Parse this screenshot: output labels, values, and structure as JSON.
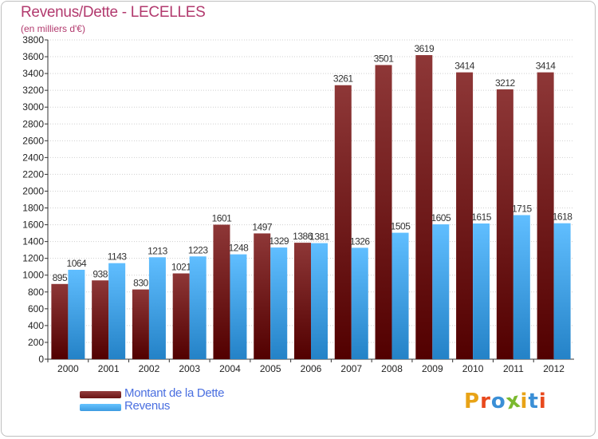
{
  "header": {
    "title": "Revenus/Dette - LECELLES",
    "subtitle": "(en milliers d'€)"
  },
  "legend": {
    "items": [
      {
        "label": "Montant de la Dette",
        "color": "#6b1414"
      },
      {
        "label": "Revenus",
        "color": "#3d9be0"
      }
    ]
  },
  "brand": {
    "letters": [
      "P",
      "r",
      "o",
      "x",
      "i",
      "t",
      "i"
    ],
    "colors": [
      "#e8a317",
      "#e8491d",
      "#3a8fd6",
      "#7ab92e",
      "#e8a317",
      "#3a8fd6",
      "#e8491d"
    ]
  },
  "chart_data": {
    "type": "bar",
    "title": "Revenus/Dette - LECELLES",
    "subtitle": "(en milliers d'€)",
    "categories": [
      "2000",
      "2001",
      "2002",
      "2003",
      "2004",
      "2005",
      "2006",
      "2007",
      "2008",
      "2009",
      "2010",
      "2011",
      "2012"
    ],
    "series": [
      {
        "name": "Montant de la Dette",
        "color": "#6b1414",
        "values": [
          895,
          938,
          830,
          1021,
          1601,
          1497,
          1386,
          3261,
          3501,
          3619,
          3414,
          3212,
          3414
        ],
        "labels": [
          "895",
          "938",
          "830",
          "1021",
          "1601",
          "1497",
          "1386",
          "3261",
          "3501",
          "3619",
          "3414",
          "3212",
          "3414"
        ]
      },
      {
        "name": "Revenus",
        "color": "#3d9be0",
        "values": [
          1064,
          1143,
          1213,
          1223,
          1248,
          1329,
          1381,
          1326,
          1505,
          1605,
          1615,
          1715,
          1618
        ],
        "labels": [
          "1064",
          "1143",
          "1213",
          "1223",
          "1248",
          "1329",
          "1381",
          "1326",
          "1505",
          "1605",
          "1615",
          "1715",
          "1618"
        ]
      }
    ],
    "ylim": [
      0,
      3800
    ],
    "ytick_step": 200,
    "grid": true,
    "legend_position": "bottom-left"
  }
}
